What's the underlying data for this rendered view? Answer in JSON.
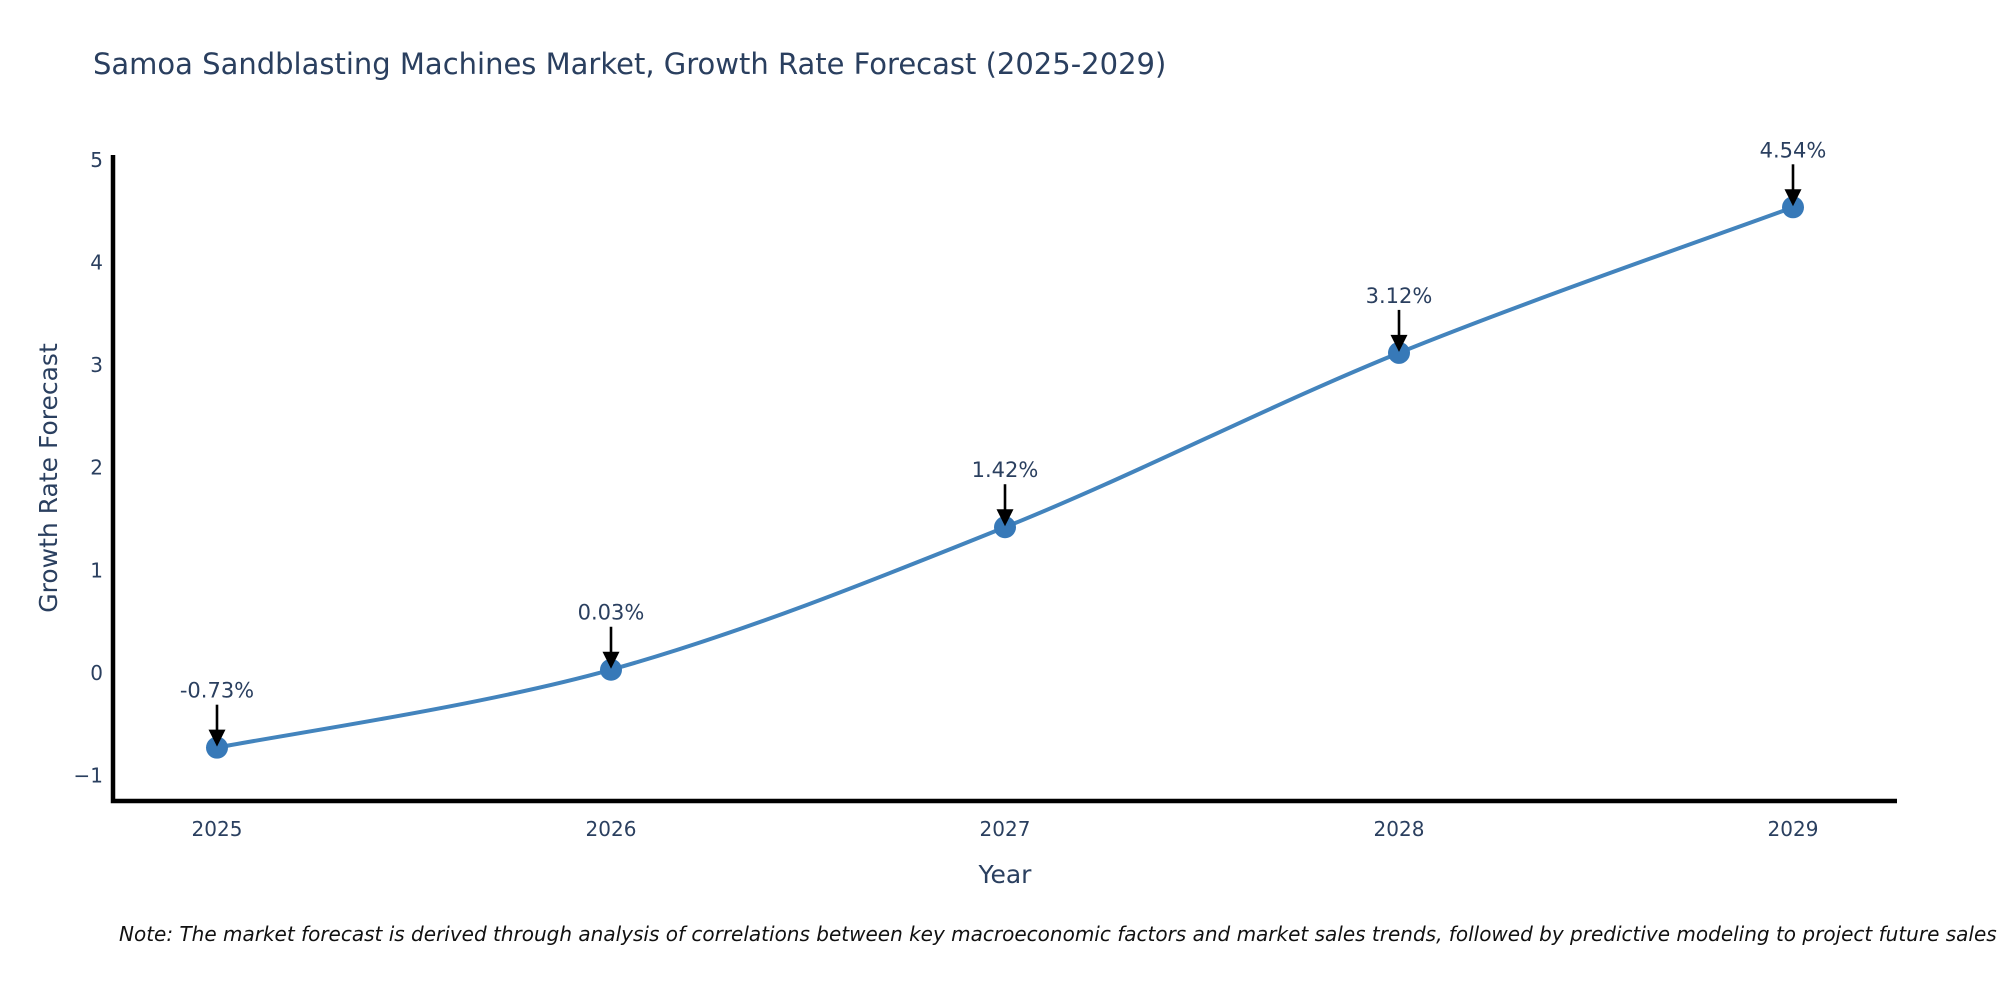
{
  "title": "Samoa Sandblasting Machines Market, Growth Rate Forecast (2025-2029)",
  "note": "Note: The market forecast is derived through analysis of correlations between key macroeconomic factors and market sales trends, followed by predictive modeling to project future sales",
  "chart_data": {
    "type": "line",
    "title": "Samoa Sandblasting Machines Market, Growth Rate Forecast (2025-2029)",
    "xlabel": "Year",
    "ylabel": "Growth Rate Forecast",
    "categories": [
      "2025",
      "2026",
      "2027",
      "2028",
      "2029"
    ],
    "values": [
      -0.73,
      0.03,
      1.42,
      3.12,
      4.54
    ],
    "point_labels": [
      "-0.73%",
      "0.03%",
      "1.42%",
      "3.12%",
      "4.54%"
    ],
    "ytick_values": [
      5,
      4,
      3,
      2,
      1,
      0,
      -1
    ],
    "ytick_labels": [
      "5",
      "4",
      "3",
      "2",
      "1",
      "0",
      "−1"
    ],
    "ylim": [
      -1.25,
      5.05
    ],
    "line_shape": "spline",
    "grid": false,
    "legend": false,
    "colors": {
      "line": "#4384bd",
      "marker": "#3779b8",
      "axis": "#000000",
      "text": "#2a3f5f",
      "arrow": "#000000",
      "note_text": "#111111",
      "background": "#ffffff"
    }
  }
}
